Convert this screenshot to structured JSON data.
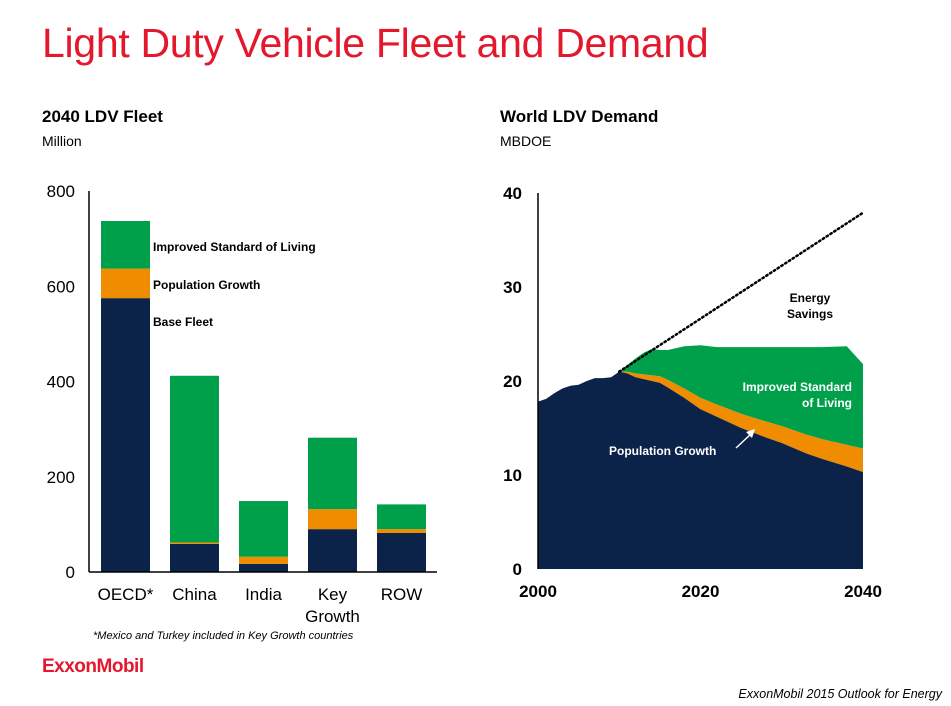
{
  "page": {
    "title": "Light Duty Vehicle Fleet and Demand",
    "footnote": "*Mexico and Turkey included in Key Growth countries",
    "logo": "ExxonMobil",
    "source": "ExxonMobil 2015 Outlook for Energy"
  },
  "colors": {
    "title": "#e3182d",
    "base": "#0b2249",
    "population": "#ef8c00",
    "living": "#00a04a"
  },
  "chart_data": [
    {
      "type": "bar",
      "stacked": true,
      "title": "2040 LDV Fleet",
      "ylabel": "Million",
      "xlabel": "",
      "ylim": [
        0,
        800
      ],
      "yticks": [
        0,
        200,
        400,
        600,
        800
      ],
      "categories": [
        "OECD*",
        "China",
        "India",
        "Key Growth",
        "ROW"
      ],
      "series": [
        {
          "name": "Base Fleet",
          "values": [
            575,
            59,
            17,
            90,
            82
          ]
        },
        {
          "name": "Population Growth",
          "values": [
            62,
            3,
            15,
            42,
            8
          ]
        },
        {
          "name": "Improved Standard of Living",
          "values": [
            100,
            350,
            117,
            150,
            52
          ]
        }
      ],
      "legend_placement": "right of first bar",
      "grid": false
    },
    {
      "type": "area",
      "stacked": true,
      "title": "World LDV Demand",
      "ylabel": "MBDOE",
      "xlabel": "",
      "xlim": [
        2000,
        2040
      ],
      "ylim": [
        0,
        40
      ],
      "xticks": [
        2000,
        2020,
        2040
      ],
      "yticks": [
        0,
        10,
        20,
        30,
        40
      ],
      "x": [
        2000,
        2001,
        2002,
        2003,
        2004,
        2005,
        2006,
        2007,
        2008,
        2009,
        2010,
        2011,
        2012,
        2013,
        2014,
        2015,
        2016,
        2018,
        2020,
        2022,
        2025,
        2028,
        2030,
        2033,
        2035,
        2038,
        2040
      ],
      "series": [
        {
          "name": "Base",
          "values": [
            17.8,
            18.1,
            18.7,
            19.2,
            19.5,
            19.6,
            20.0,
            20.3,
            20.3,
            20.4,
            21.0,
            20.8,
            20.4,
            20.2,
            20.0,
            19.8,
            19.3,
            18.2,
            17.0,
            16.2,
            15.0,
            14.0,
            13.4,
            12.3,
            11.7,
            10.9,
            10.3
          ]
        },
        {
          "name": "Population Growth",
          "values": [
            0,
            0,
            0,
            0,
            0,
            0,
            0,
            0,
            0,
            0,
            0,
            0.2,
            0.4,
            0.5,
            0.6,
            0.7,
            0.8,
            1.0,
            1.2,
            1.3,
            1.5,
            1.7,
            1.8,
            2.0,
            2.1,
            2.3,
            2.5
          ]
        },
        {
          "name": "Improved Standard of Living",
          "values": [
            0,
            0,
            0,
            0,
            0,
            0,
            0,
            0,
            0,
            0,
            0,
            0.7,
            1.6,
            2.3,
            2.8,
            2.8,
            3.2,
            4.5,
            5.6,
            6.1,
            7.1,
            7.9,
            8.4,
            9.3,
            9.8,
            10.5,
            9.0
          ]
        }
      ],
      "dotted_line": {
        "name": "Energy Savings",
        "x": [
          2010,
          2040
        ],
        "values": [
          21.0,
          37.9
        ]
      },
      "annotations": [
        "Energy Savings",
        "Improved Standard of Living",
        "Population Growth"
      ],
      "grid": false
    }
  ],
  "labels": {
    "energy_savings": [
      "Energy",
      "Savings"
    ],
    "living": [
      "Improved Standard",
      "of Living"
    ],
    "population": "Population Growth",
    "key_growth": [
      "Key",
      "Growth"
    ]
  }
}
